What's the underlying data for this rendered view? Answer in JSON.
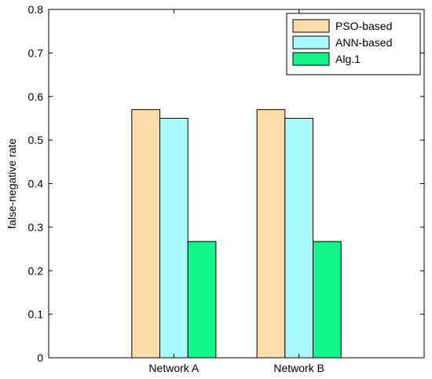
{
  "chart_data": {
    "type": "bar",
    "categories": [
      "Network A",
      "Network B"
    ],
    "series": [
      {
        "name": "PSO-based",
        "values": [
          0.57,
          0.57
        ],
        "color": "#FDDCAA"
      },
      {
        "name": "ANN-based",
        "values": [
          0.55,
          0.55
        ],
        "color": "#AAFAFA"
      },
      {
        "name": "Alg.1",
        "values": [
          0.267,
          0.267
        ],
        "color": "#11F58A"
      }
    ],
    "xlabel": "",
    "ylabel": "false-negative rate",
    "ylim": [
      0,
      0.8
    ],
    "yticks": [
      "0",
      "0.1",
      "0.2",
      "0.3",
      "0.4",
      "0.5",
      "0.6",
      "0.7",
      "0.8"
    ],
    "grid": false,
    "legend_position": "top-right"
  }
}
